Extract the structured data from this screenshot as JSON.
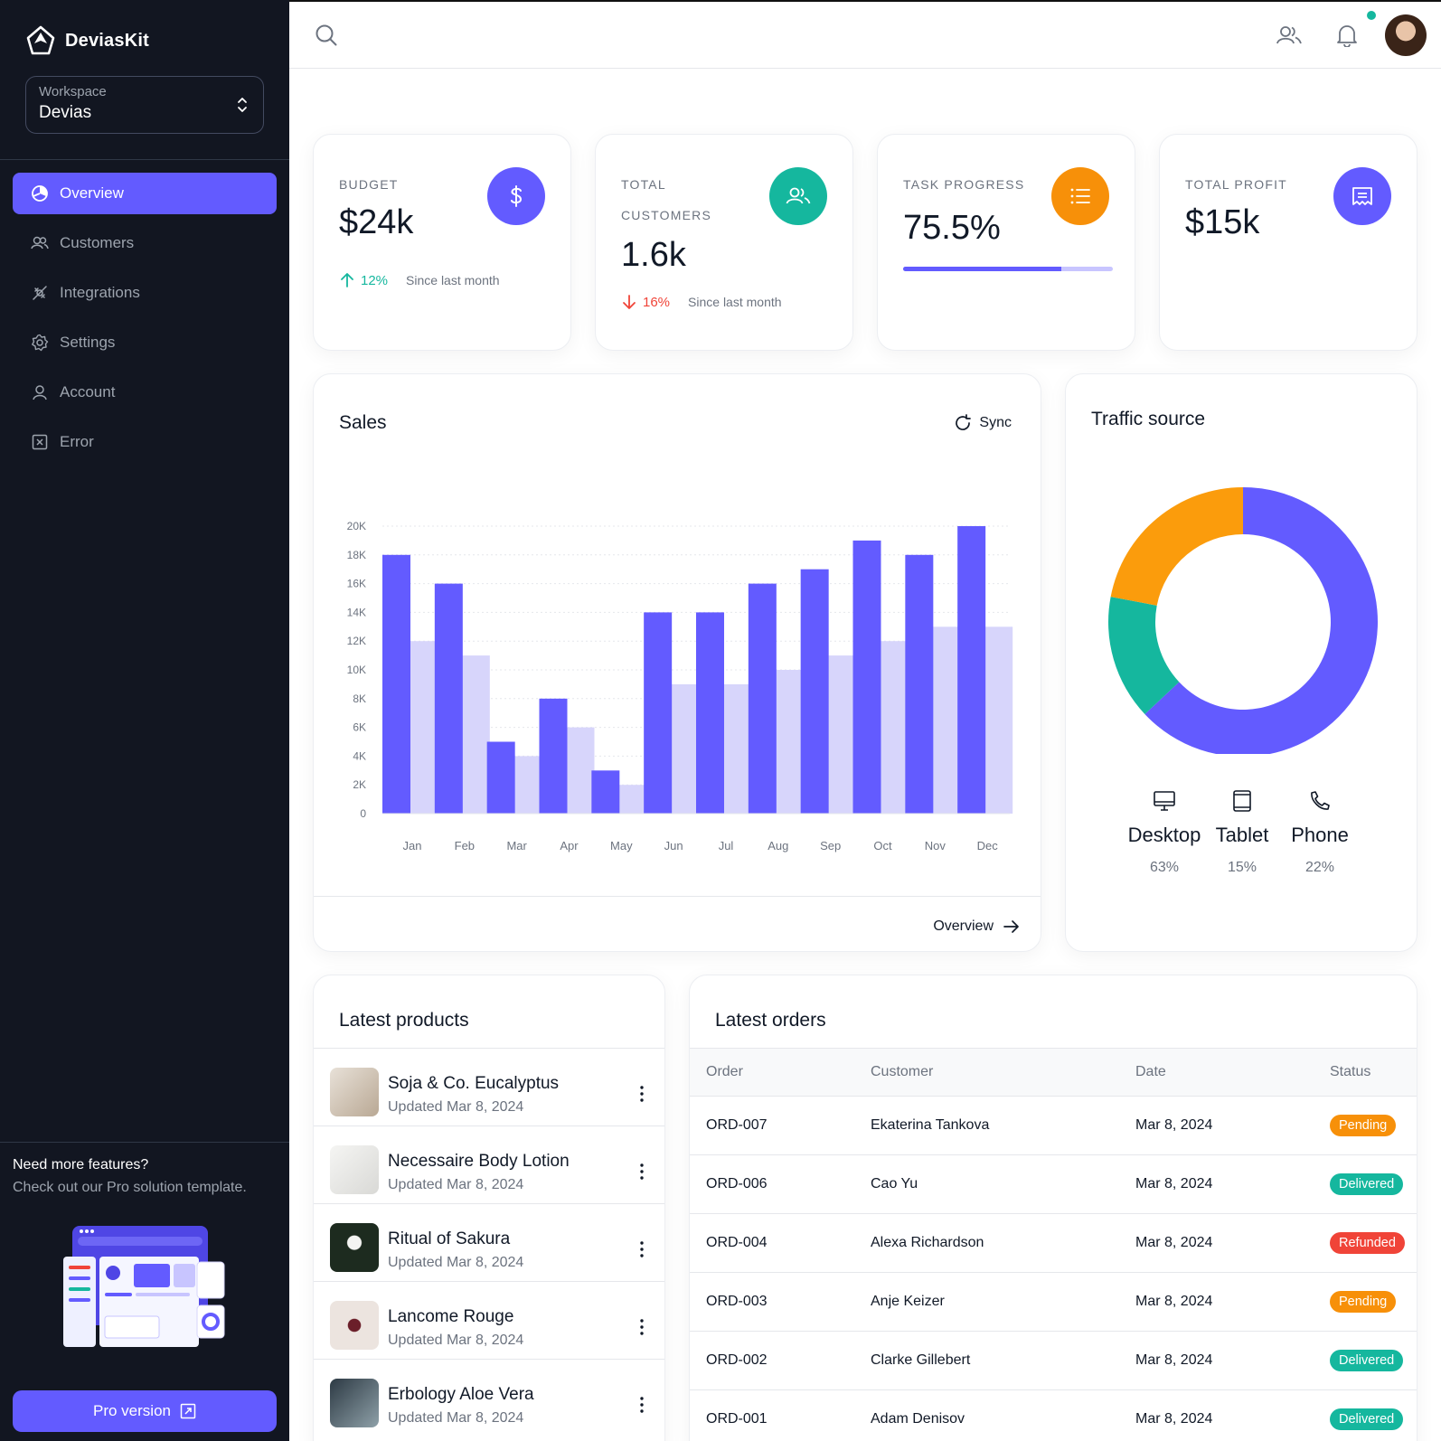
{
  "sidebar": {
    "brand": "DeviasKit",
    "workspace_label": "Workspace",
    "workspace_value": "Devias",
    "nav": [
      {
        "label": "Overview",
        "icon": "pie-chart-icon",
        "active": true
      },
      {
        "label": "Customers",
        "icon": "users-icon"
      },
      {
        "label": "Integrations",
        "icon": "plugs-icon"
      },
      {
        "label": "Settings",
        "icon": "gear-icon"
      },
      {
        "label": "Account",
        "icon": "user-icon"
      },
      {
        "label": "Error",
        "icon": "x-square-icon"
      }
    ],
    "promo_title": "Need more features?",
    "promo_subtitle": "Check out our Pro solution template.",
    "pro_button": "Pro version"
  },
  "stats": {
    "budget": {
      "label": "BUDGET",
      "value": "$24k",
      "trend": "12%",
      "since": "Since last month",
      "direction": "up",
      "color": "#635bff"
    },
    "customers": {
      "label_line1": "TOTAL",
      "label_line2": "CUSTOMERS",
      "value": "1.6k",
      "trend": "16%",
      "since": "Since last month",
      "direction": "down",
      "color": "#15b79e"
    },
    "task": {
      "label": "TASK PROGRESS",
      "value": "75.5%",
      "progress": 0.755,
      "color": "#f79009"
    },
    "profit": {
      "label": "TOTAL PROFIT",
      "value": "$15k",
      "color": "#635bff"
    }
  },
  "sales": {
    "title": "Sales",
    "sync_label": "Sync",
    "overview_label": "Overview"
  },
  "chart_data": [
    {
      "type": "bar",
      "categories": [
        "Jan",
        "Feb",
        "Mar",
        "Apr",
        "May",
        "Jun",
        "Jul",
        "Aug",
        "Sep",
        "Oct",
        "Nov",
        "Dec"
      ],
      "series": [
        {
          "values": [
            18,
            16,
            5,
            8,
            3,
            14,
            14,
            16,
            17,
            19,
            18,
            20
          ],
          "color": "#635bff"
        },
        {
          "values": [
            12,
            11,
            4,
            6,
            2,
            9,
            9,
            10,
            11,
            12,
            13,
            13
          ],
          "color": "#d7d5fb"
        }
      ],
      "yticks": [
        "0",
        "2K",
        "4K",
        "6K",
        "8K",
        "10K",
        "12K",
        "14K",
        "16K",
        "18K",
        "20K"
      ],
      "ylim": [
        0,
        20
      ],
      "grid": true
    },
    {
      "type": "pie",
      "title": "Traffic source",
      "labels": [
        "Desktop",
        "Tablet",
        "Phone"
      ],
      "values": [
        63,
        15,
        22
      ],
      "display": [
        "63%",
        "15%",
        "22%"
      ],
      "colors": [
        "#635bff",
        "#15b79e",
        "#fb9c0c"
      ]
    }
  ],
  "products": {
    "title": "Latest products",
    "items": [
      {
        "name": "Soja & Co. Eucalyptus",
        "updated": "Updated Mar 8, 2024"
      },
      {
        "name": "Necessaire Body Lotion",
        "updated": "Updated Mar 8, 2024"
      },
      {
        "name": "Ritual of Sakura",
        "updated": "Updated Mar 8, 2024"
      },
      {
        "name": "Lancome Rouge",
        "updated": "Updated Mar 8, 2024"
      },
      {
        "name": "Erbology Aloe Vera",
        "updated": "Updated Mar 8, 2024"
      }
    ]
  },
  "orders": {
    "title": "Latest orders",
    "columns": [
      "Order",
      "Customer",
      "Date",
      "Status"
    ],
    "rows": [
      {
        "id": "ORD-007",
        "customer": "Ekaterina Tankova",
        "date": "Mar 8, 2024",
        "status": "Pending",
        "color": "#f79009"
      },
      {
        "id": "ORD-006",
        "customer": "Cao Yu",
        "date": "Mar 8, 2024",
        "status": "Delivered",
        "color": "#15b79e"
      },
      {
        "id": "ORD-004",
        "customer": "Alexa Richardson",
        "date": "Mar 8, 2024",
        "status": "Refunded",
        "color": "#f04438"
      },
      {
        "id": "ORD-003",
        "customer": "Anje Keizer",
        "date": "Mar 8, 2024",
        "status": "Pending",
        "color": "#f79009"
      },
      {
        "id": "ORD-002",
        "customer": "Clarke Gillebert",
        "date": "Mar 8, 2024",
        "status": "Delivered",
        "color": "#15b79e"
      },
      {
        "id": "ORD-001",
        "customer": "Adam Denisov",
        "date": "Mar 8, 2024",
        "status": "Delivered",
        "color": "#15b79e"
      }
    ]
  }
}
